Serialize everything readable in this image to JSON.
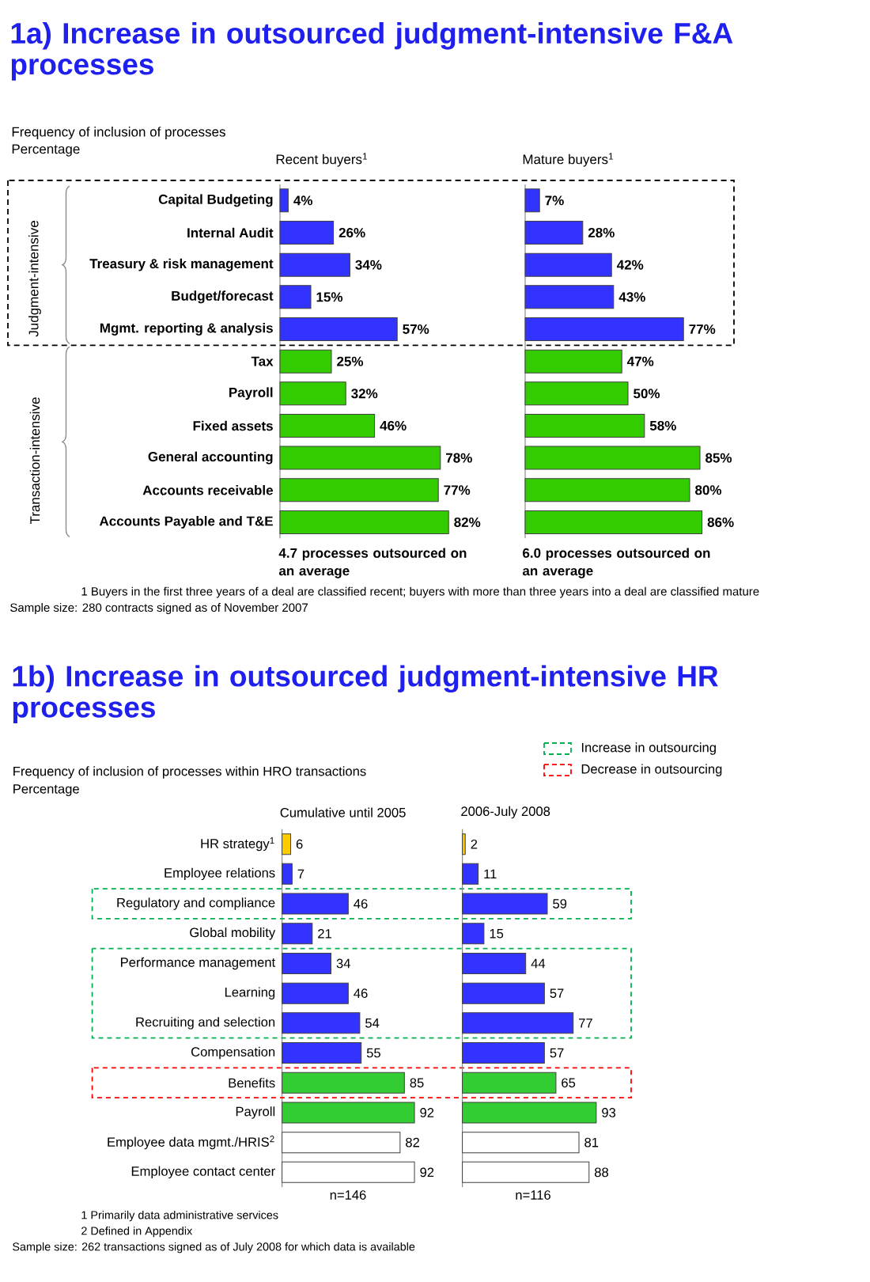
{
  "chart_data": [
    {
      "type": "bar",
      "orientation": "horizontal",
      "title": "1a) Increase in outsourced judgment-intensive F&A processes",
      "subtitle": "Frequency of inclusion of processes",
      "xlabel": "4.7 processes outsourced on an average",
      "categories": [
        "Capital Budgeting",
        "Internal Audit",
        "Treasury & risk management",
        "Budget/forecast",
        "Mgmt. reporting & analysis",
        "Tax",
        "Payroll",
        "Fixed assets",
        "General accounting",
        "Accounts receivable",
        "Accounts Payable and T&E"
      ],
      "values": [
        4,
        26,
        34,
        15,
        57,
        25,
        32,
        46,
        78,
        77,
        82
      ],
      "value_labels": [
        "4%",
        "26%",
        "34%",
        "15%",
        "57%",
        "25%",
        "32%",
        "46%",
        "78%",
        "77%",
        "82%"
      ],
      "colors": [
        "#3333ff",
        "#3333ff",
        "#3333ff",
        "#3333ff",
        "#3333ff",
        "#33cc00",
        "#33cc00",
        "#33cc00",
        "#33cc00",
        "#33cc00",
        "#33cc00"
      ],
      "tick_labels": "y",
      "annotations": [
        "Percentage",
        "Recent buyers$^{1}$",
        "Judgment-intensive",
        "Transaction-intensive",
        "1 Buyers in the first three years of a deal are classified recent; buyers with more than three years into a deal are classified mature",
        "Sample size: 280 contracts signed as of November 2007"
      ]
    },
    {
      "type": "bar",
      "orientation": "horizontal",
      "title": "Mature buyers$^{1}$",
      "xlabel": "6.0 processes outsourced on an average",
      "categories": [
        null,
        null,
        null,
        null,
        null,
        null,
        null,
        null,
        null,
        null,
        null
      ],
      "values": [
        7,
        28,
        42,
        43,
        77,
        47,
        50,
        58,
        85,
        80,
        86
      ],
      "value_labels": [
        "7%",
        "28%",
        "42%",
        "43%",
        "77%",
        "47%",
        "50%",
        "58%",
        "85%",
        "80%",
        "86%"
      ],
      "colors": [
        "#3333ff",
        "#3333ff",
        "#3333ff",
        "#3333ff",
        "#3333ff",
        "#33cc00",
        "#33cc00",
        "#33cc00",
        "#33cc00",
        "#33cc00",
        "#33cc00"
      ]
    },
    {
      "type": "bar",
      "orientation": "horizontal",
      "title": "1b) Increase in outsourced judgment-intensive HR processes",
      "subtitle": "Frequency of inclusion of processes within HRO transactions",
      "xlabel": "n=146",
      "categories": [
        "HR strategy$^{1}$",
        "Employee relations",
        "Regulatory and compliance",
        "Global mobility",
        "Performance management",
        "Learning",
        "Recruiting and selection",
        "Compensation",
        "Benefits",
        "Payroll",
        "Employee data mgmt./HRIS$^{2}$",
        "Employee contact center"
      ],
      "values": [
        6,
        7,
        46,
        21,
        34,
        46,
        54,
        55,
        85,
        92,
        82,
        92
      ],
      "colors": [
        "#ffcc00",
        "#3333ff",
        "#3333ff",
        "#3333ff",
        "#3333ff",
        "#3333ff",
        "#3333ff",
        "#3333ff",
        "#33cc33",
        "#33cc33",
        "#ffffff",
        "#ffffff"
      ],
      "data_labels": true,
      "tick_labels": "y",
      "annotations": [
        "Percentage",
        "Cumulative until 2005",
        "Increase in outsourcing",
        "Decrease in outsourcing",
        "1 Primarily data administrative services",
        "2 Defined in Appendix",
        "Sample size: 262 transactions signed as of July 2008 for which data is available"
      ]
    },
    {
      "type": "bar",
      "orientation": "horizontal",
      "title": "2006-July 2008",
      "xlabel": "n=116",
      "categories": [
        null,
        null,
        null,
        null,
        null,
        null,
        null,
        null,
        null,
        null,
        null,
        null
      ],
      "values": [
        2,
        11,
        59,
        15,
        44,
        57,
        77,
        57,
        65,
        93,
        81,
        88
      ],
      "colors": [
        "#ffcc00",
        "#3333ff",
        "#3333ff",
        "#3333ff",
        "#3333ff",
        "#3333ff",
        "#3333ff",
        "#3333ff",
        "#33cc33",
        "#33cc33",
        "#ffffff",
        "#ffffff"
      ],
      "data_labels": true
    }
  ]
}
